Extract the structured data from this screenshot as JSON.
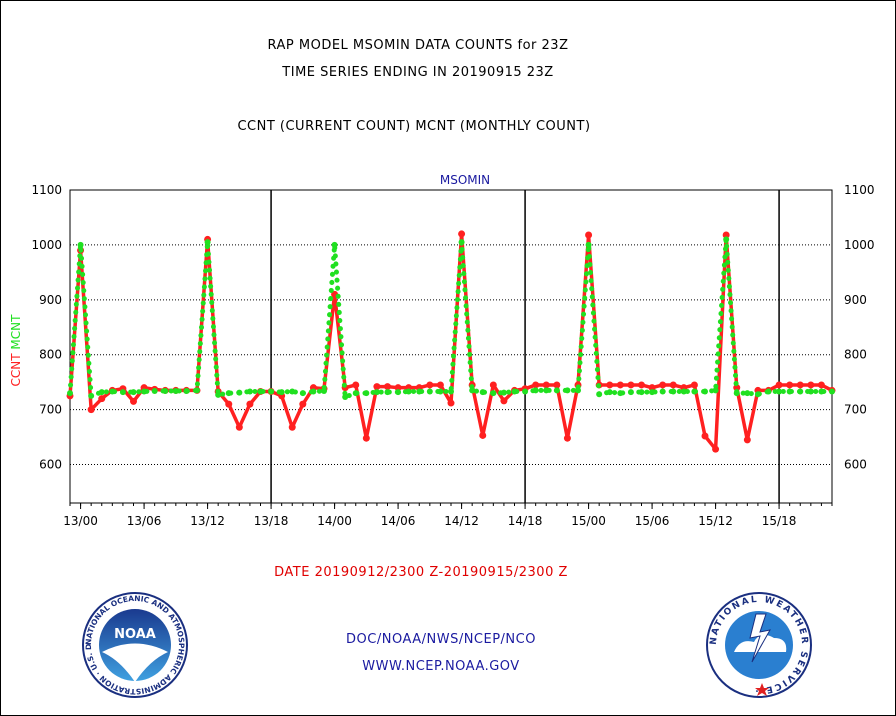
{
  "header": {
    "title_line1": "RAP MODEL MSOMIN DATA COUNTS for 23Z",
    "title_line2": "TIME SERIES ENDING IN 20190915 23Z",
    "subtitle": "CCNT (CURRENT COUNT) MCNT (MONTHLY COUNT)"
  },
  "footer": {
    "date_range": "DATE 20190912/2300 Z-20190915/2300 Z",
    "org": "DOC/NOAA/NWS/NCEP/NCO",
    "url": "WWW.NCEP.NOAA.GOV"
  },
  "logos": {
    "noaa_text": "NOAA",
    "noaa_ring": "NATIONAL OCEANIC AND ATMOSPHERIC ADMINISTRATION · U.S. DEPARTMENT OF COMMERCE ·",
    "nws_ring": "NATIONAL WEATHER SERVICE ·"
  },
  "colors": {
    "ccnt": "#ff2020",
    "mcnt": "#20e020",
    "title": "#000000",
    "date_text": "#e00000",
    "footer_text": "#1a1aa0"
  },
  "chart_data": {
    "type": "line",
    "title": "MSOMIN",
    "ylabel_left": [
      "CCNT",
      "MCNT"
    ],
    "ylim": [
      530,
      1100
    ],
    "yticks": [
      600,
      700,
      800,
      900,
      1000,
      1100
    ],
    "xticks": [
      {
        "h": 1,
        "label": "13/00"
      },
      {
        "h": 7,
        "label": "13/06"
      },
      {
        "h": 13,
        "label": "13/12"
      },
      {
        "h": 19,
        "label": "13/18"
      },
      {
        "h": 25,
        "label": "14/00"
      },
      {
        "h": 31,
        "label": "14/06"
      },
      {
        "h": 37,
        "label": "14/12"
      },
      {
        "h": 43,
        "label": "14/18"
      },
      {
        "h": 49,
        "label": "15/00"
      },
      {
        "h": 55,
        "label": "15/06"
      },
      {
        "h": 61,
        "label": "15/12"
      },
      {
        "h": 67,
        "label": "15/18"
      }
    ],
    "xlim": [
      0,
      72
    ],
    "day_boundaries": [
      19,
      43,
      67
    ],
    "grid": true,
    "x_hours_from_20190912_23Z": [
      0,
      1,
      2,
      3,
      4,
      5,
      6,
      7,
      8,
      9,
      10,
      11,
      12,
      13,
      14,
      15,
      16,
      17,
      18,
      19,
      20,
      21,
      22,
      23,
      24,
      25,
      26,
      27,
      28,
      29,
      30,
      31,
      32,
      33,
      34,
      35,
      36,
      37,
      38,
      39,
      40,
      41,
      42,
      43,
      44,
      45,
      46,
      47,
      48,
      49,
      50,
      51,
      52,
      53,
      54,
      55,
      56,
      57,
      58,
      59,
      60,
      61,
      62,
      63,
      64,
      65,
      66,
      67,
      68,
      69,
      70,
      71,
      72
    ],
    "series": [
      {
        "name": "CCNT",
        "values": [
          725,
          990,
          700,
          720,
          735,
          738,
          715,
          740,
          737,
          735,
          735,
          735,
          735,
          1010,
          733,
          710,
          668,
          710,
          733,
          733,
          725,
          668,
          710,
          740,
          738,
          910,
          740,
          745,
          648,
          742,
          742,
          740,
          740,
          740,
          745,
          745,
          712,
          1020,
          745,
          653,
          745,
          716,
          735,
          738,
          745,
          745,
          745,
          648,
          745,
          1018,
          745,
          745,
          745,
          745,
          745,
          740,
          745,
          745,
          740,
          745,
          652,
          628,
          1018,
          740,
          645,
          735,
          735,
          745,
          745,
          745,
          745,
          745,
          735
        ]
      },
      {
        "name": "MCNT",
        "values": [
          730,
          1000,
          725,
          732,
          733,
          732,
          732,
          733,
          734,
          734,
          734,
          734,
          735,
          1005,
          727,
          730,
          731,
          733,
          733,
          733,
          732,
          733,
          730,
          733,
          734,
          1000,
          723,
          730,
          730,
          732,
          732,
          732,
          733,
          733,
          733,
          733,
          733,
          1005,
          735,
          732,
          730,
          731,
          733,
          733,
          735,
          735,
          735,
          735,
          735,
          1000,
          728,
          732,
          730,
          732,
          732,
          732,
          733,
          733,
          733,
          733,
          733,
          735,
          1010,
          730,
          730,
          728,
          733,
          733,
          733,
          733,
          733,
          733,
          733
        ]
      }
    ]
  }
}
